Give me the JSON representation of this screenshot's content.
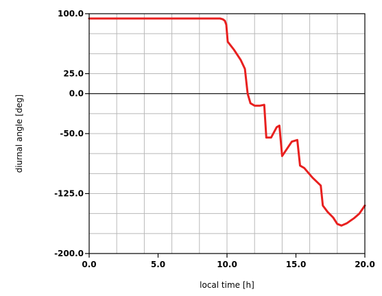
{
  "chart_data": {
    "type": "line",
    "title": "",
    "xlabel": "local time [h]",
    "ylabel": "diurnal angle [deg]",
    "xlim": [
      0,
      20
    ],
    "ylim": [
      -200,
      100
    ],
    "x_ticks": [
      {
        "value": 0,
        "label": "0.0"
      },
      {
        "value": 5,
        "label": "5.0"
      },
      {
        "value": 10,
        "label": "10.0"
      },
      {
        "value": 15,
        "label": "15.0"
      },
      {
        "value": 20,
        "label": "20.0"
      }
    ],
    "y_ticks": [
      {
        "value": 100,
        "label": "100.0"
      },
      {
        "value": 25,
        "label": "25.0"
      },
      {
        "value": 0,
        "label": "0.0"
      },
      {
        "value": -50,
        "label": "-50.0"
      },
      {
        "value": -125,
        "label": "-125.0"
      },
      {
        "value": -200,
        "label": "-200.0"
      }
    ],
    "x_grid": [
      2,
      4,
      6,
      8,
      10,
      12,
      14,
      16,
      18
    ],
    "y_grid": [
      75,
      50,
      25,
      -25,
      -50,
      -75,
      -100,
      -125,
      -150,
      -175
    ],
    "zero_line": 0,
    "grid": true,
    "series": [
      {
        "color": "#e8201f",
        "x": [
          0,
          9.2,
          9.5,
          9.7,
          9.85,
          9.95,
          10.05,
          10.5,
          11.0,
          11.3,
          11.5,
          11.7,
          12.0,
          12.4,
          12.7,
          12.85,
          13.2,
          13.6,
          13.8,
          14.0,
          14.7,
          15.1,
          15.3,
          15.6,
          16.2,
          16.8,
          16.95,
          17.3,
          17.7,
          18.0,
          18.3,
          18.7,
          19.2,
          19.6,
          20.0
        ],
        "y": [
          94,
          94,
          94,
          93,
          91,
          86,
          65,
          55,
          42,
          31,
          0,
          -12,
          -15,
          -15,
          -14,
          -55,
          -55,
          -42,
          -40,
          -78,
          -60,
          -58,
          -90,
          -93,
          -105,
          -115,
          -140,
          -148,
          -155,
          -163,
          -165,
          -162,
          -156,
          -150,
          -140
        ]
      }
    ]
  }
}
